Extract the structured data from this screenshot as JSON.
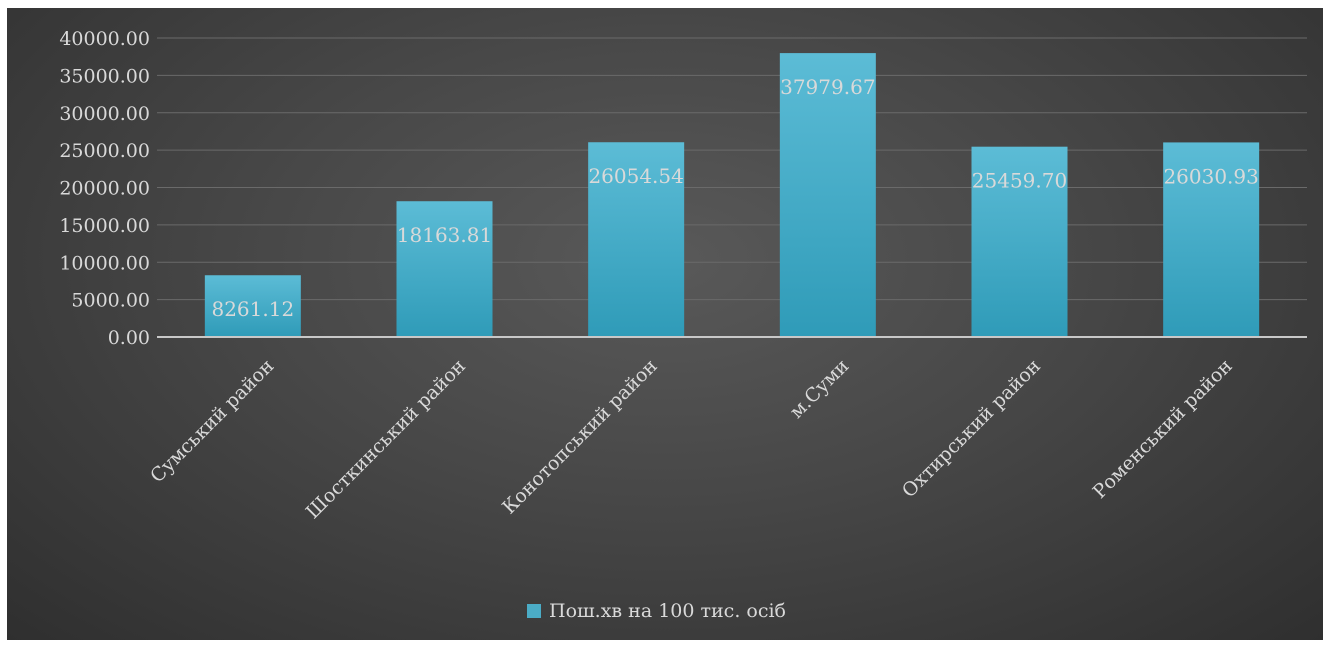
{
  "chart_data": {
    "type": "bar",
    "categories": [
      "Сумський район",
      "Шосткинський район",
      "Конотопський район",
      "м.Суми",
      "Охтирський район",
      "Роменський район"
    ],
    "series": [
      {
        "name": "Пош.хв на 100 тис. осіб",
        "values": [
          8261.12,
          18163.81,
          26054.54,
          37979.67,
          25459.7,
          26030.93
        ],
        "labels": [
          "8261.12",
          "18163.81",
          "26054.54",
          "37979.67",
          "25459.70",
          "26030.93"
        ]
      }
    ],
    "yticks": [
      "0.00",
      "5000.00",
      "10000.00",
      "15000.00",
      "20000.00",
      "25000.00",
      "30000.00",
      "35000.00",
      "40000.00"
    ],
    "ylim": [
      0,
      40000
    ],
    "grid": true,
    "legend_position": "bottom",
    "colors": {
      "bar": "#4bacc6",
      "background": "#474747",
      "text": "#d9d9d9",
      "grid": "#6a6a6a"
    }
  }
}
